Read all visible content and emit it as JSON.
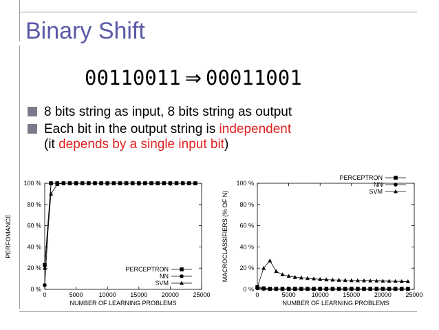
{
  "slide": {
    "title": "Binary Shift",
    "formula_left": "00110011",
    "formula_arrow": "⇒",
    "formula_right": "00011001",
    "bullets": [
      {
        "text": "8 bits string as input, 8 bits string as output"
      },
      {
        "text_before": "Each bit in the output string is ",
        "text_red": "independent"
      },
      {
        "text_before": "(it ",
        "text_red": "depends by a single input bit",
        "text_after": ")"
      }
    ]
  },
  "chart_data": [
    {
      "type": "line",
      "xlabel": "NUMBER OF LEARNING PROBLEMS",
      "ylabel": "PERFOMANCE",
      "xlim": [
        0,
        25000
      ],
      "ylim": [
        0,
        100
      ],
      "xticks": [
        "0",
        "5000",
        "10000",
        "15000",
        "20000",
        "25000"
      ],
      "yticks": [
        "0 %",
        "20 %",
        "40 %",
        "60 %",
        "80 %",
        "100 %"
      ],
      "legend": "bottom-right",
      "series": [
        {
          "name": "PERCEPTRON",
          "marker": "square",
          "x": [
            0,
            1000,
            2000,
            3000,
            4000,
            5000,
            6000,
            7000,
            8000,
            9000,
            10000,
            11000,
            12000,
            13000,
            14000,
            15000,
            16000,
            17000,
            18000,
            19000,
            20000,
            21000,
            22000,
            23000,
            24000
          ],
          "y": [
            23,
            100,
            100,
            100,
            100,
            100,
            100,
            100,
            100,
            100,
            100,
            100,
            100,
            100,
            100,
            100,
            100,
            100,
            100,
            100,
            100,
            100,
            100,
            100,
            100
          ]
        },
        {
          "name": "NN",
          "marker": "circle",
          "x": [
            0,
            1000,
            2000,
            3000,
            4000,
            5000,
            6000,
            7000,
            8000,
            9000,
            10000,
            11000,
            12000,
            13000,
            14000,
            15000,
            16000,
            17000,
            18000,
            19000,
            20000,
            21000,
            22000,
            23000,
            24000
          ],
          "y": [
            4,
            100,
            100,
            100,
            100,
            100,
            100,
            100,
            100,
            100,
            100,
            100,
            100,
            100,
            100,
            100,
            100,
            100,
            100,
            100,
            100,
            100,
            100,
            100,
            100
          ]
        },
        {
          "name": "SVM",
          "marker": "triangle",
          "x": [
            0,
            1000,
            2000,
            3000,
            4000,
            5000,
            6000,
            7000,
            8000,
            9000,
            10000,
            11000,
            12000,
            13000,
            14000,
            15000,
            16000,
            17000,
            18000,
            19000,
            20000,
            21000,
            22000,
            23000,
            24000
          ],
          "y": [
            20,
            90,
            99,
            100,
            100,
            100,
            100,
            100,
            100,
            100,
            100,
            100,
            100,
            100,
            100,
            100,
            100,
            100,
            100,
            100,
            100,
            100,
            100,
            100,
            100
          ]
        }
      ]
    },
    {
      "type": "line",
      "xlabel": "NUMBER OF LEARNING PROBLEMS",
      "ylabel": "MACROCLASSIFIERS (% OF N)",
      "xlim": [
        0,
        25000
      ],
      "ylim": [
        0,
        100
      ],
      "xticks": [
        "0",
        "5000",
        "10000",
        "15000",
        "20000",
        "25000"
      ],
      "yticks": [
        "0 %",
        "20 %",
        "40 %",
        "60 %",
        "80 %",
        "100 %"
      ],
      "legend": "top-right",
      "series": [
        {
          "name": "PERCEPTRON",
          "marker": "square",
          "x": [
            0,
            1000,
            2000,
            3000,
            4000,
            5000,
            6000,
            7000,
            8000,
            9000,
            10000,
            11000,
            12000,
            13000,
            14000,
            15000,
            16000,
            17000,
            18000,
            19000,
            20000,
            21000,
            22000,
            23000,
            24000
          ],
          "y": [
            2,
            1,
            0.5,
            0.5,
            0.5,
            0.5,
            0.5,
            0.5,
            0.5,
            0.5,
            0.5,
            0.5,
            0.5,
            0.5,
            0.5,
            0.5,
            0.5,
            0.5,
            0.5,
            0.5,
            0.5,
            0.5,
            0.5,
            0.5,
            0.5
          ]
        },
        {
          "name": "NN",
          "marker": "circle",
          "x": [
            0,
            1000,
            2000,
            3000,
            4000,
            5000,
            6000,
            7000,
            8000,
            9000,
            10000,
            11000,
            12000,
            13000,
            14000,
            15000,
            16000,
            17000,
            18000,
            19000,
            20000,
            21000,
            22000,
            23000,
            24000
          ],
          "y": [
            1,
            0.5,
            0.3,
            0.3,
            0.3,
            0.3,
            0.3,
            0.3,
            0.3,
            0.3,
            0.3,
            0.3,
            0.3,
            0.3,
            0.3,
            0.3,
            0.3,
            0.3,
            0.3,
            0.3,
            0.3,
            0.3,
            0.3,
            0.3,
            0.3
          ]
        },
        {
          "name": "SVM",
          "marker": "triangle",
          "x": [
            0,
            1000,
            2000,
            3000,
            4000,
            5000,
            6000,
            7000,
            8000,
            9000,
            10000,
            11000,
            12000,
            13000,
            14000,
            15000,
            16000,
            17000,
            18000,
            19000,
            20000,
            21000,
            22000,
            23000,
            24000
          ],
          "y": [
            2,
            20,
            27,
            17,
            14,
            12.5,
            11.5,
            11,
            10.5,
            10,
            9.5,
            9.2,
            9,
            8.8,
            8.6,
            8.4,
            8.3,
            8.2,
            8.1,
            8,
            7.9,
            7.8,
            7.7,
            7.6,
            7.5
          ]
        }
      ]
    }
  ]
}
